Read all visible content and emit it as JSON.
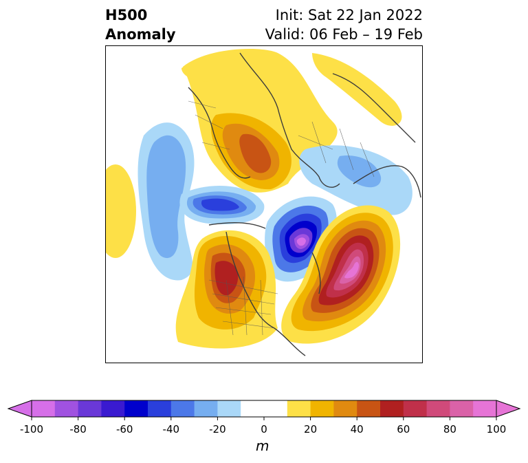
{
  "title": {
    "left_line1": "H500",
    "left_line2": "Anomaly",
    "right_line1": "Init: Sat 22 Jan 2022",
    "right_line2": "Valid: 06 Feb – 19 Feb"
  },
  "colorbar": {
    "unit": "m",
    "ticks": [
      "-100",
      "-80",
      "-60",
      "-40",
      "-20",
      "0",
      "20",
      "40",
      "60",
      "80",
      "100"
    ],
    "colors": [
      "#d66fe8",
      "#a052e0",
      "#6a38d8",
      "#3a1ad0",
      "#0000cc",
      "#2a3fdc",
      "#4c78e8",
      "#76aef0",
      "#aad8f8",
      "#ffffff",
      "#ffffff",
      "#fde047",
      "#f0b400",
      "#e08a10",
      "#c85414",
      "#b02020",
      "#c0304a",
      "#d04a7a",
      "#da62a8",
      "#e674d6"
    ]
  },
  "map": {
    "projection": "north-polar-stereographic",
    "field": "H500 anomaly",
    "features": [
      {
        "name": "ridge-europe",
        "sign": "positive",
        "peak": 60
      },
      {
        "name": "ridge-north-pacific",
        "sign": "positive",
        "peak": 10
      },
      {
        "name": "trough-east-atlantic",
        "sign": "negative",
        "peak": -20
      },
      {
        "name": "trough-siberia",
        "sign": "negative",
        "peak": -50
      },
      {
        "name": "trough-greenland",
        "sign": "negative",
        "peak": -90
      },
      {
        "name": "ridge-western-north-america",
        "sign": "positive",
        "peak": 70
      },
      {
        "name": "ridge-alaska-gulf",
        "sign": "positive",
        "peak": 100
      },
      {
        "name": "trough-east-asia",
        "sign": "negative",
        "peak": -20
      }
    ]
  }
}
